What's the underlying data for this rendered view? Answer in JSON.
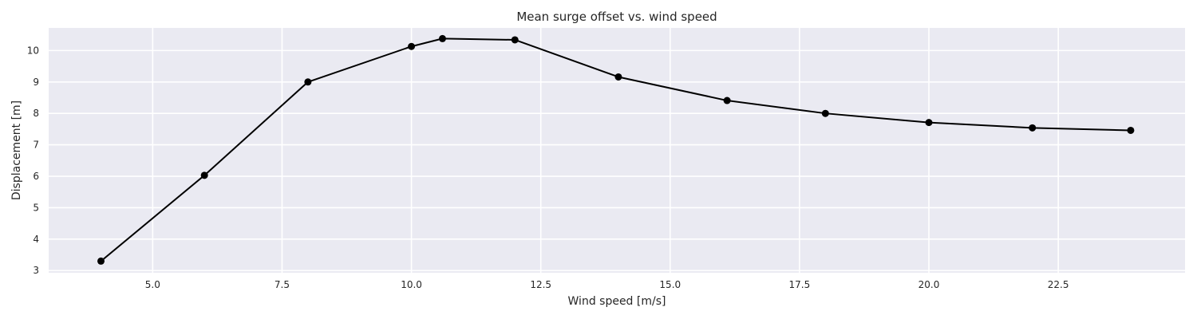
{
  "chart_data": {
    "type": "line",
    "title": "Mean surge offset vs. wind speed",
    "xlabel": "Wind speed [m/s]",
    "ylabel": "Displacement [m]",
    "xlim": [
      2.99,
      24.95
    ],
    "ylim": [
      2.93,
      10.72
    ],
    "xticks": [
      5.0,
      7.5,
      10.0,
      12.5,
      15.0,
      17.5,
      20.0,
      22.5
    ],
    "xtick_labels": [
      "5.0",
      "7.5",
      "10.0",
      "12.5",
      "15.0",
      "17.5",
      "20.0",
      "22.5"
    ],
    "yticks": [
      3,
      4,
      5,
      6,
      7,
      8,
      9,
      10
    ],
    "ytick_labels": [
      "3",
      "4",
      "5",
      "6",
      "7",
      "8",
      "9",
      "10"
    ],
    "grid": true,
    "series": [
      {
        "color": "#000000",
        "marker": "circle",
        "x": [
          4.0,
          6.0,
          8.0,
          10.0,
          10.6,
          12.0,
          14.0,
          16.1,
          18.0,
          20.0,
          22.0,
          23.9
        ],
        "y": [
          3.3,
          6.03,
          9.0,
          10.13,
          10.38,
          10.34,
          9.16,
          8.41,
          8.0,
          7.71,
          7.54,
          7.46
        ]
      }
    ]
  },
  "style": {
    "plot_background": "#eaeaf2",
    "grid_color": "#ffffff",
    "text_color": "#262626"
  }
}
